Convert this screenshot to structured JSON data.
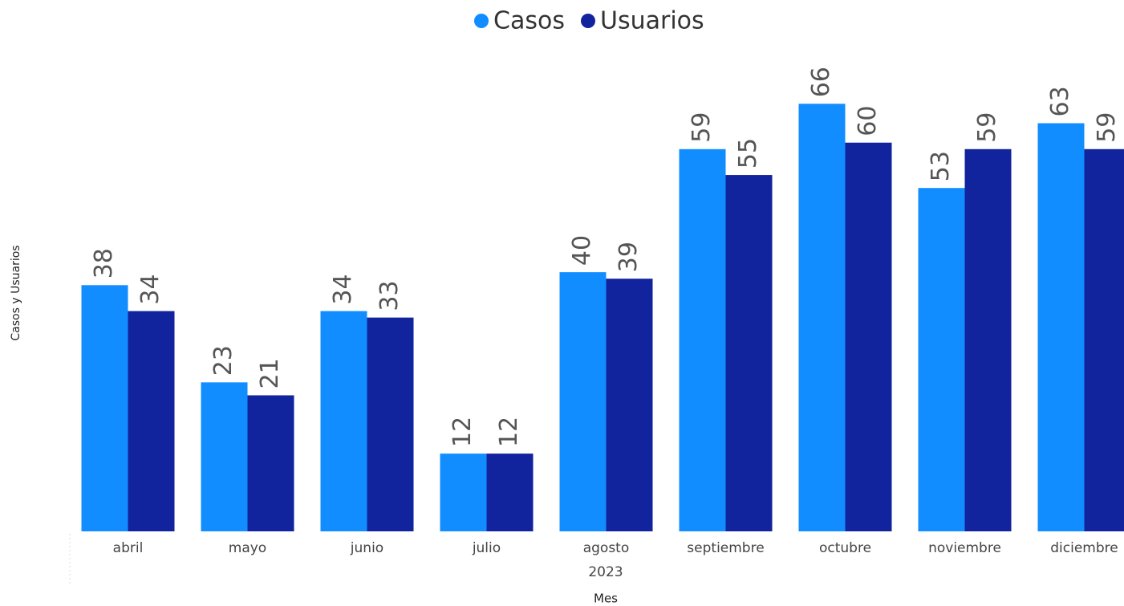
{
  "chart_data": {
    "type": "bar",
    "legend_position": "top",
    "categories": [
      "abril",
      "mayo",
      "junio",
      "julio",
      "agosto",
      "septiembre",
      "octubre",
      "noviembre",
      "diciembre"
    ],
    "x_group_label": "2023",
    "x_label": "Mes",
    "y_label": "Casos y Usuarios",
    "series": [
      {
        "name": "Casos",
        "color": "#118DFF",
        "values": [
          38,
          23,
          34,
          12,
          40,
          59,
          66,
          53,
          63
        ]
      },
      {
        "name": "Usuarios",
        "color": "#12239E",
        "values": [
          34,
          21,
          33,
          12,
          39,
          55,
          60,
          59,
          59
        ]
      }
    ],
    "ylim": [
      0,
      70
    ]
  }
}
